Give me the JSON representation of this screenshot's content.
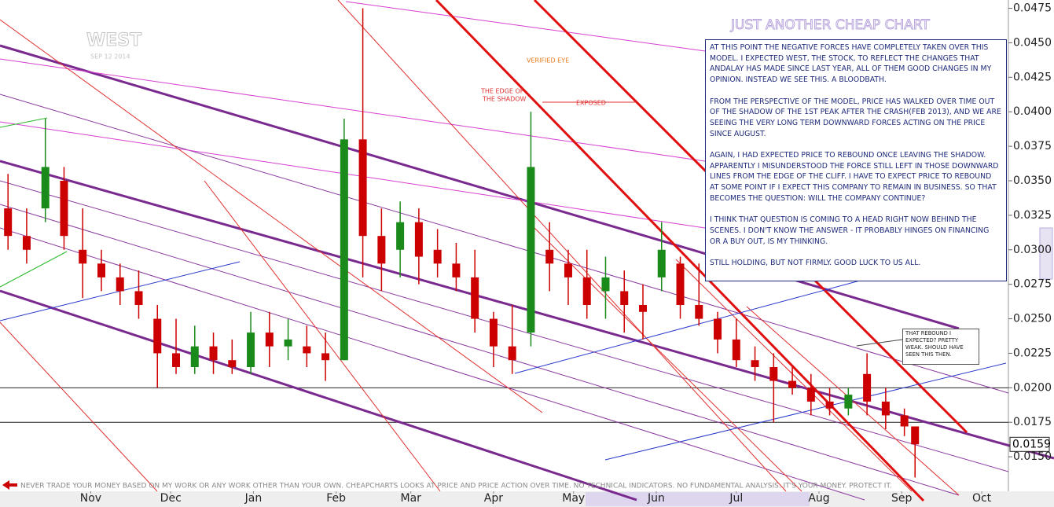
{
  "chart_data": {
    "type": "candlestick",
    "title": "JUST ANOTHER CHEAP CHART",
    "ticker": "WEST",
    "date": "SEP 12 2014",
    "annotations": {
      "verified": "VERIFIED EYE",
      "edge": [
        "THE EDGE OF",
        "THE SHADOW"
      ],
      "exposed": "EXPOSED",
      "note": [
        "AT THIS POINT THE NEGATIVE FORCES HAVE COMPLETELY TAKEN OVER THIS MODEL. I EXPECTED WEST, THE STOCK, TO REFLECT THE CHANGES THAT ANDALAY HAS MADE SINCE LAST YEAR, ALL OF THEM GOOD CHANGES IN MY OPINION. INSTEAD WE SEE THIS. A BLOODBATH.",
        "FROM THE PERSPECTIVE OF THE MODEL, PRICE HAS WALKED OVER TIME OUT OF THE SHADOW OF THE 1ST PEAK AFTER THE CRASH(FEB 2013), AND WE ARE SEEING THE VERY LONG TERM DOWNWARD FORCES ACTING ON THE PRICE SINCE AUGUST.",
        "AGAIN, I HAD EXPECTED PRICE TO REBOUND ONCE LEAVING THE SHADOW. APPARENTLY I MISUNDERSTOOD THE FORCE STILL LEFT IN THOSE DOWNWARD LINES FROM THE EDGE OF THE CLIFF. I HAVE TO EXPECT PRICE TO REBOUND AT SOME POINT IF I EXPECT THIS COMPANY TO REMAIN IN BUSINESS. SO THAT BECOMES THE QUESTION: WILL THE COMPANY CONTINUE?",
        "I THINK THAT QUESTION IS COMING TO A HEAD RIGHT NOW BEHIND THE SCENES. I DON'T KNOW THE ANSWER - IT PROBABLY HINGES ON FINANCING OR A BUY OUT, IS MY THINKING.",
        "STILL HOLDING, BUT NOT FIRMLY. GOOD LUCK TO US ALL."
      ],
      "rebound": "THAT REBOUND I EXPECTED? PRETTY WEAK. SHOULD HAVE SEEN THIS THEN.",
      "footer": "NEVER TRADE YOUR MONEY BASED ON MY WORK OR ANY WORK OTHER THAN YOUR OWN. CHEAPCHARTS LOOKS AT PRICE AND PRICE ACTION OVER TIME. NO TECHNICAL INDICATORS. NO FUNDAMENTAL ANALYSIS. IT'S YOUR MONEY. PROTECT IT."
    },
    "x": [
      15,
      22,
      29,
      36,
      43,
      50,
      57,
      64,
      71,
      78,
      85,
      92,
      99,
      106,
      113,
      120,
      127,
      134,
      141,
      148,
      155,
      162,
      169,
      176,
      183,
      190,
      197,
      204,
      211,
      218,
      225,
      232,
      239,
      246,
      253,
      260,
      267,
      274,
      281,
      288,
      295,
      302,
      309,
      316,
      323,
      330,
      337,
      344,
      351,
      355
    ],
    "open": [
      0.033,
      0.031,
      0.033,
      0.035,
      0.03,
      0.029,
      0.028,
      0.027,
      0.025,
      0.0225,
      0.0215,
      0.023,
      0.022,
      0.0215,
      0.024,
      0.023,
      0.023,
      0.0225,
      0.022,
      0.038,
      0.031,
      0.03,
      0.032,
      0.03,
      0.029,
      0.028,
      0.025,
      0.023,
      0.024,
      0.03,
      0.029,
      0.028,
      0.027,
      0.027,
      0.026,
      0.028,
      0.029,
      0.026,
      0.025,
      0.0235,
      0.022,
      0.0215,
      0.0205,
      0.02,
      0.019,
      0.0185,
      0.021,
      0.019,
      0.018,
      0.0172
    ],
    "high": [
      0.0355,
      0.033,
      0.0395,
      0.036,
      0.033,
      0.03,
      0.029,
      0.0285,
      0.026,
      0.025,
      0.0245,
      0.024,
      0.0235,
      0.0255,
      0.0255,
      0.025,
      0.0245,
      0.024,
      0.0395,
      0.0475,
      0.033,
      0.0335,
      0.033,
      0.0315,
      0.0305,
      0.03,
      0.0255,
      0.026,
      0.04,
      0.032,
      0.03,
      0.03,
      0.0295,
      0.0285,
      0.0275,
      0.032,
      0.0295,
      0.029,
      0.0255,
      0.025,
      0.023,
      0.0225,
      0.0215,
      0.021,
      0.02,
      0.02,
      0.0225,
      0.02,
      0.0185,
      0.0172
    ],
    "low": [
      0.03,
      0.029,
      0.032,
      0.03,
      0.0265,
      0.027,
      0.026,
      0.025,
      0.02,
      0.021,
      0.021,
      0.021,
      0.021,
      0.021,
      0.0215,
      0.022,
      0.0215,
      0.0205,
      0.022,
      0.028,
      0.027,
      0.028,
      0.0275,
      0.028,
      0.027,
      0.024,
      0.0215,
      0.021,
      0.023,
      0.027,
      0.026,
      0.025,
      0.025,
      0.024,
      0.0235,
      0.027,
      0.025,
      0.0245,
      0.0225,
      0.0215,
      0.0205,
      0.0175,
      0.0195,
      0.018,
      0.018,
      0.018,
      0.018,
      0.017,
      0.0165,
      0.0135
    ],
    "close": [
      0.031,
      0.03,
      0.036,
      0.031,
      0.029,
      0.028,
      0.027,
      0.026,
      0.0225,
      0.0215,
      0.023,
      0.022,
      0.0215,
      0.024,
      0.023,
      0.0235,
      0.0225,
      0.022,
      0.038,
      0.031,
      0.029,
      0.032,
      0.0295,
      0.029,
      0.028,
      0.025,
      0.023,
      0.022,
      0.036,
      0.029,
      0.028,
      0.026,
      0.028,
      0.026,
      0.0255,
      0.03,
      0.026,
      0.025,
      0.0235,
      0.022,
      0.0215,
      0.0205,
      0.02,
      0.019,
      0.0185,
      0.0195,
      0.019,
      0.018,
      0.0172,
      0.0159
    ],
    "up_color": "#1a8a1a",
    "down_color": "#cc0000",
    "xlim": [
      12,
      390
    ],
    "xticks": [
      {
        "value": 46,
        "label": "Nov"
      },
      {
        "value": 76,
        "label": "Dec"
      },
      {
        "value": 107,
        "label": "Jan"
      },
      {
        "value": 138,
        "label": "Feb"
      },
      {
        "value": 166,
        "label": "Mar"
      },
      {
        "value": 197,
        "label": "Apr"
      },
      {
        "value": 227,
        "label": "May"
      },
      {
        "value": 258,
        "label": "Jun"
      },
      {
        "value": 288,
        "label": "Jul"
      },
      {
        "value": 319,
        "label": "Aug"
      },
      {
        "value": 350,
        "label": "Sep"
      },
      {
        "value": 380,
        "label": "Oct"
      }
    ],
    "ylim": [
      0.0125,
      0.0481
    ],
    "yticks": [
      {
        "value": 0.015,
        "label": "0.0150"
      },
      {
        "value": 0.0175,
        "label": "0.0175"
      },
      {
        "value": 0.02,
        "label": "0.0200"
      },
      {
        "value": 0.0225,
        "label": "0.0225"
      },
      {
        "value": 0.025,
        "label": "0.0250"
      },
      {
        "value": 0.0275,
        "label": "0.0275"
      },
      {
        "value": 0.03,
        "label": "0.0300"
      },
      {
        "value": 0.0325,
        "label": "0.0325"
      },
      {
        "value": 0.035,
        "label": "0.0350"
      },
      {
        "value": 0.0375,
        "label": "0.0375"
      },
      {
        "value": 0.04,
        "label": "0.0400"
      },
      {
        "value": 0.0425,
        "label": "0.0425"
      },
      {
        "value": 0.045,
        "label": "0.0450"
      },
      {
        "value": 0.0475,
        "label": "0.0475"
      }
    ],
    "hlines": [
      0.02,
      0.0175
    ],
    "last_price": 0.0159
  }
}
